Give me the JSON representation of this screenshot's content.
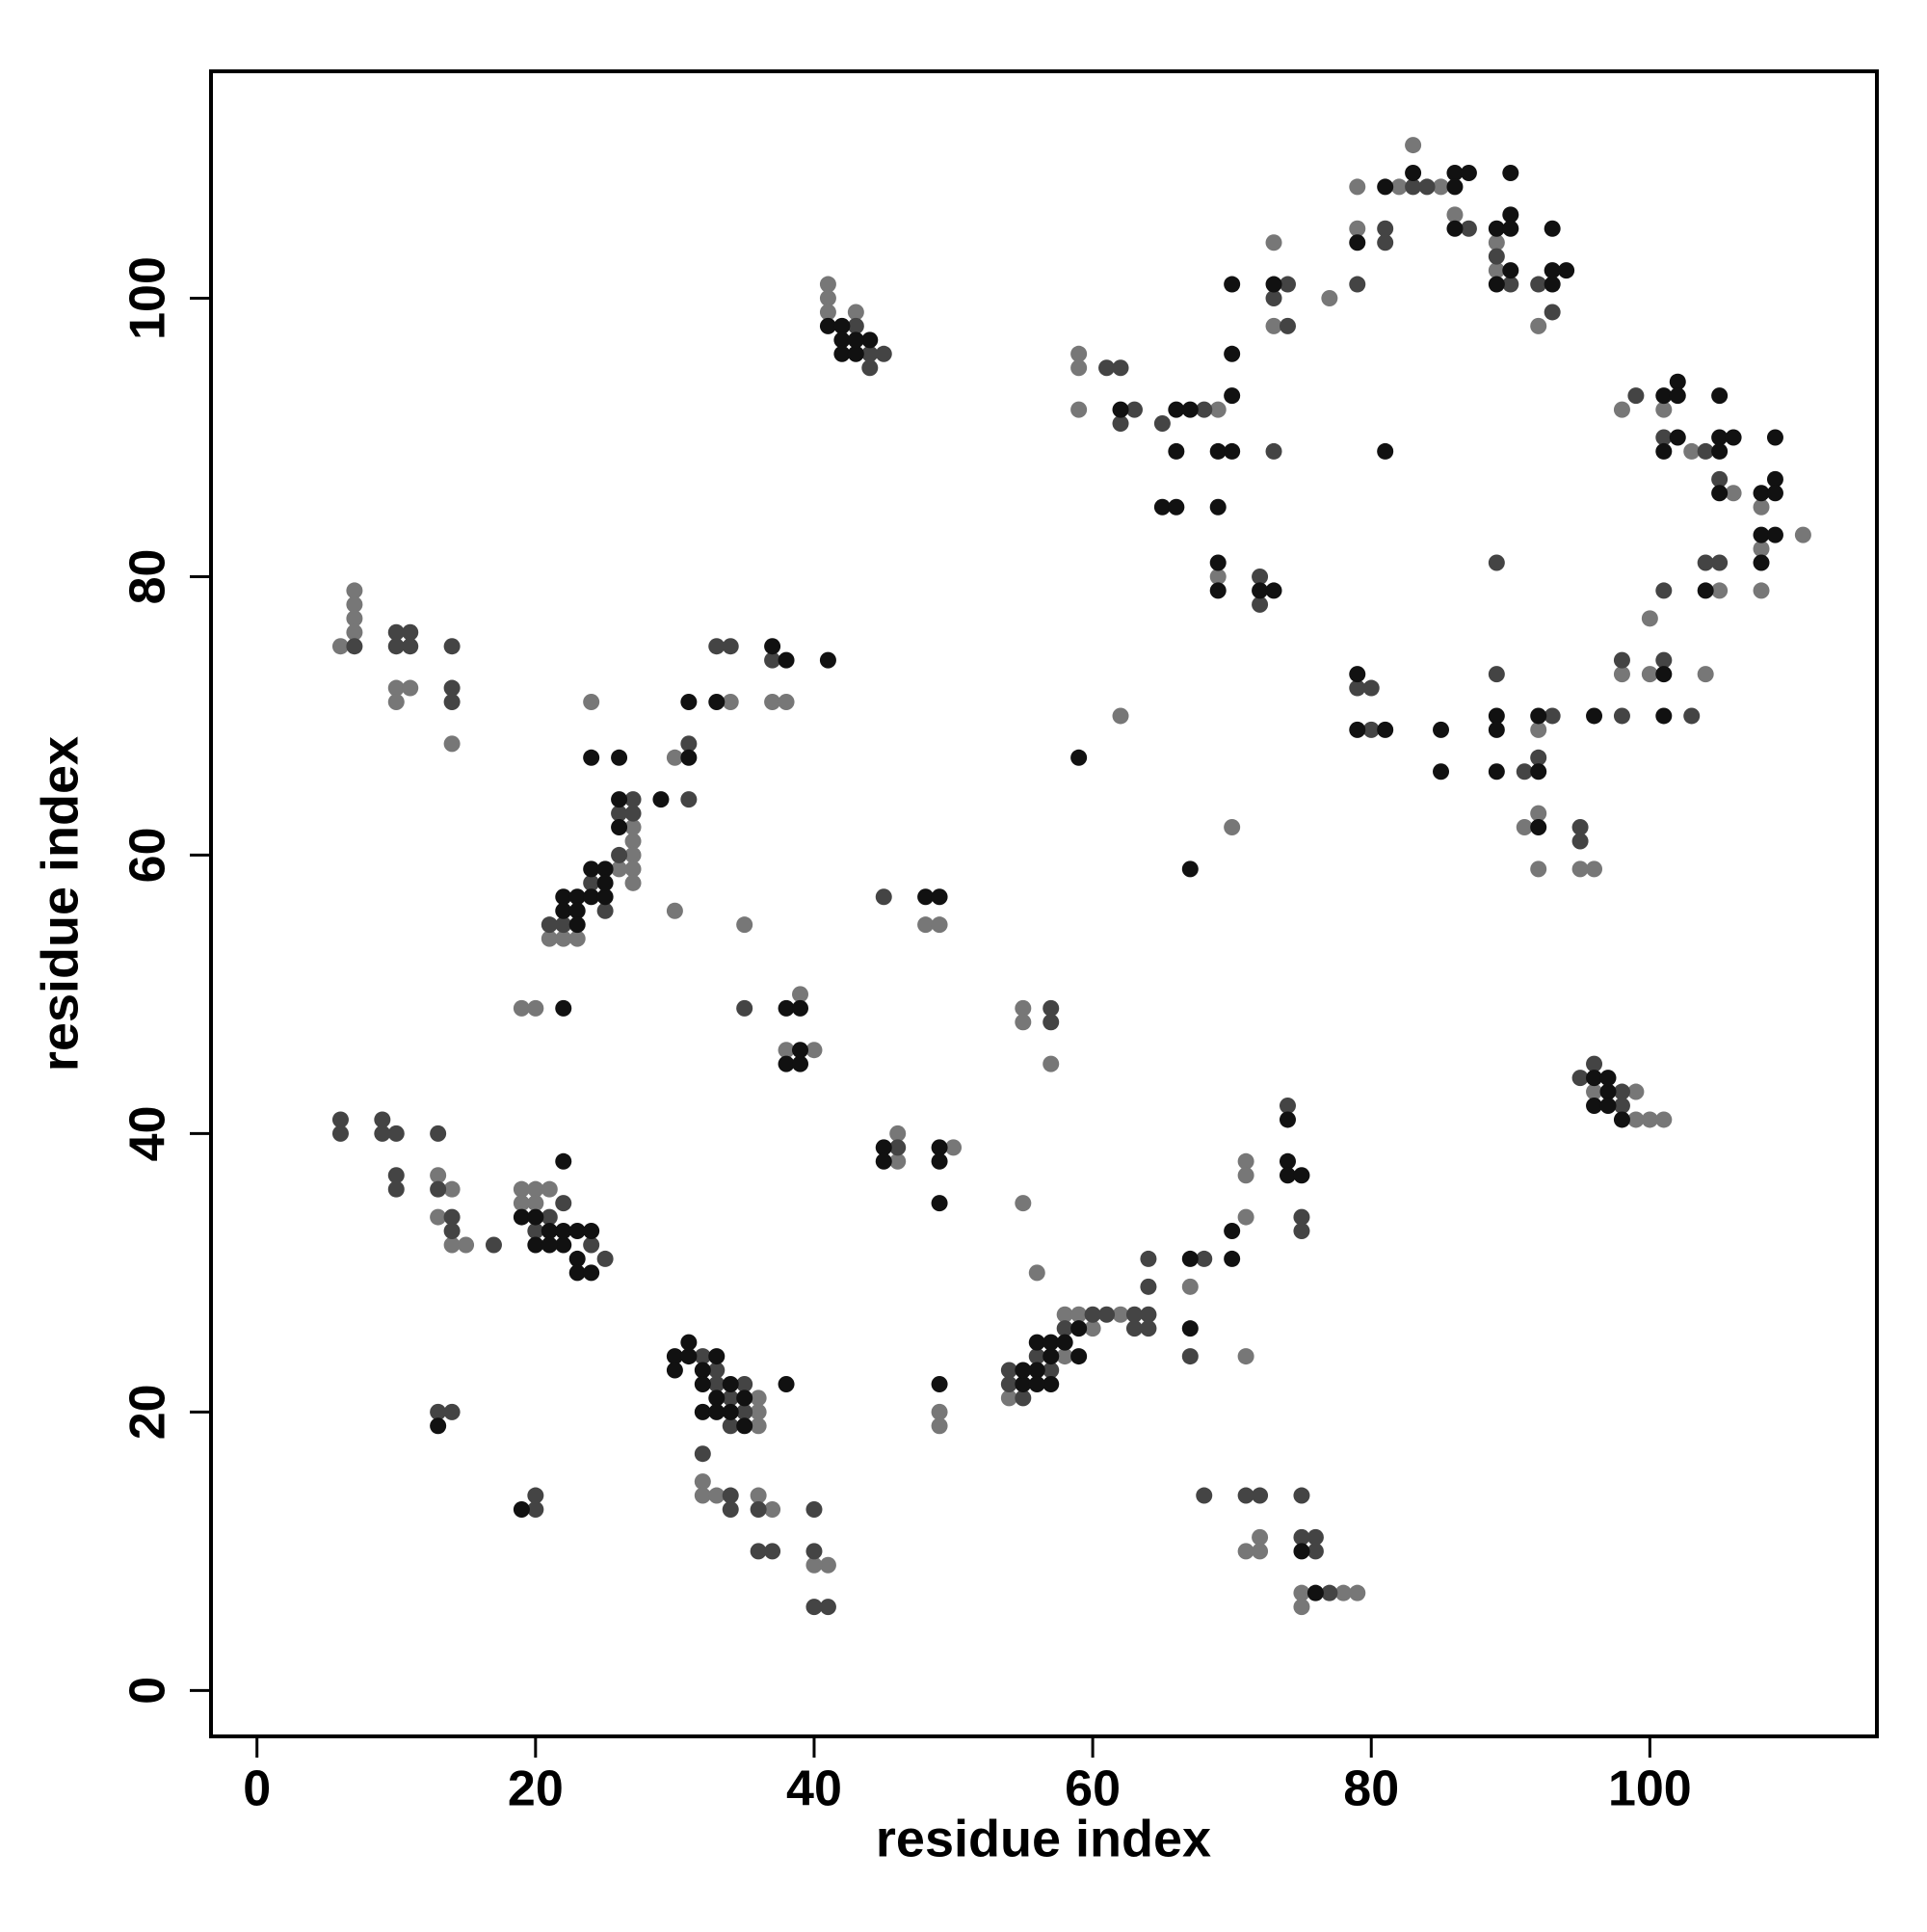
{
  "chart_data": {
    "type": "scatter",
    "xlabel": "residue index",
    "ylabel": "residue index",
    "xlim": [
      -3.3,
      116.3
    ],
    "ylim": [
      -3.3,
      116.3
    ],
    "xticks": [
      0,
      20,
      40,
      60,
      80,
      100
    ],
    "yticks": [
      0,
      20,
      40,
      60,
      80,
      100
    ],
    "series": [
      {
        "color": "#777777",
        "x": [
          41,
          41,
          41,
          43,
          6,
          7,
          7,
          7,
          7,
          10,
          10,
          11,
          14,
          21,
          22,
          23,
          26,
          27,
          27,
          27,
          27,
          27,
          24,
          30,
          34,
          37,
          38,
          30,
          35,
          19,
          20,
          39,
          38,
          40,
          48,
          49,
          13,
          14,
          13,
          14,
          15,
          19,
          20,
          21,
          19,
          20,
          32,
          32,
          33,
          36,
          36,
          36,
          36,
          37,
          41,
          40,
          46,
          46,
          50,
          49,
          49,
          54,
          58,
          59,
          62,
          60,
          56,
          55,
          58,
          67,
          71,
          71,
          71,
          71,
          71,
          72,
          72,
          75,
          75,
          78,
          79,
          55,
          55,
          57,
          96,
          99,
          99,
          100,
          101,
          59,
          59,
          59,
          69,
          69,
          73,
          73,
          77,
          79,
          79,
          82,
          83,
          85,
          86,
          89,
          89,
          92,
          92,
          91,
          92,
          92,
          95,
          96,
          98,
          98,
          100,
          100,
          101,
          103,
          104,
          105,
          106,
          108,
          108,
          108,
          111,
          62,
          70
        ],
        "values": [
          101,
          100,
          99,
          99,
          75,
          79,
          78,
          77,
          76,
          72,
          71,
          72,
          68,
          54,
          54,
          54,
          59,
          62,
          61,
          60,
          59,
          58,
          71,
          67,
          71,
          71,
          71,
          56,
          55,
          49,
          49,
          50,
          46,
          46,
          55,
          55,
          37,
          36,
          34,
          32,
          32,
          36,
          36,
          36,
          35,
          35,
          15,
          14,
          14,
          21,
          20,
          19,
          14,
          13,
          9,
          9,
          40,
          38,
          39,
          20,
          19,
          21,
          27,
          27,
          27,
          26,
          30,
          35,
          24,
          29,
          38,
          37,
          34,
          24,
          10,
          11,
          10,
          7,
          6,
          7,
          7,
          49,
          48,
          45,
          43,
          43,
          41,
          41,
          41,
          96,
          95,
          92,
          92,
          80,
          104,
          98,
          100,
          108,
          105,
          108,
          111,
          108,
          106,
          104,
          102,
          98,
          69,
          62,
          63,
          59,
          59,
          59,
          73,
          92,
          77,
          73,
          92,
          89,
          73,
          79,
          86,
          85,
          82,
          79,
          83,
          70,
          62
        ]
      },
      {
        "color": "#444444",
        "x": [
          43,
          44,
          45,
          44,
          7,
          10,
          11,
          10,
          11,
          14,
          14,
          14,
          21,
          22,
          24,
          25,
          26,
          27,
          27,
          31,
          31,
          33,
          34,
          37,
          35,
          26,
          45,
          6,
          6,
          9,
          9,
          10,
          10,
          10,
          13,
          13,
          14,
          14,
          17,
          22,
          21,
          20,
          24,
          25,
          32,
          33,
          33,
          34,
          35,
          35,
          34,
          32,
          34,
          34,
          36,
          37,
          40,
          40,
          40,
          41,
          36,
          13,
          14,
          20,
          20,
          46,
          54,
          54,
          55,
          56,
          58,
          60,
          61,
          63,
          64,
          63,
          64,
          64,
          64,
          57,
          67,
          68,
          68,
          71,
          72,
          74,
          75,
          75,
          75,
          75,
          76,
          76,
          77,
          57,
          57,
          95,
          96,
          98,
          98,
          61,
          62,
          62,
          63,
          68,
          65,
          72,
          72,
          73,
          73,
          74,
          74,
          79,
          81,
          81,
          83,
          84,
          87,
          89,
          90,
          93,
          92,
          79,
          80,
          80,
          89,
          89,
          91,
          93,
          92,
          95,
          95,
          98,
          98,
          99,
          101,
          101,
          101,
          104,
          105,
          105,
          103,
          104
        ],
        "values": [
          98,
          95,
          96,
          96,
          75,
          76,
          76,
          75,
          75,
          75,
          72,
          71,
          55,
          55,
          58,
          56,
          63,
          64,
          63,
          68,
          64,
          75,
          75,
          74,
          49,
          60,
          57,
          41,
          40,
          41,
          40,
          40,
          37,
          36,
          40,
          36,
          34,
          33,
          32,
          35,
          34,
          33,
          32,
          31,
          24,
          23,
          22,
          21,
          22,
          20,
          19,
          17,
          14,
          13,
          10,
          10,
          13,
          10,
          6,
          6,
          13,
          20,
          20,
          14,
          13,
          39,
          23,
          22,
          21,
          24,
          26,
          27,
          27,
          27,
          27,
          26,
          26,
          31,
          29,
          23,
          24,
          31,
          14,
          14,
          14,
          42,
          34,
          33,
          14,
          11,
          11,
          10,
          7,
          49,
          48,
          44,
          45,
          42,
          43,
          95,
          95,
          91,
          92,
          92,
          91,
          80,
          78,
          89,
          100,
          101,
          98,
          101,
          105,
          104,
          108,
          108,
          105,
          103,
          101,
          99,
          101,
          72,
          69,
          72,
          81,
          73,
          66,
          70,
          67,
          62,
          61,
          74,
          70,
          93,
          90,
          74,
          79,
          81,
          81,
          87,
          70,
          89
        ]
      },
      {
        "color": "#111111",
        "x": [
          41,
          42,
          42,
          42,
          43,
          44,
          43,
          22,
          23,
          22,
          23,
          24,
          25,
          23,
          24,
          25,
          26,
          26,
          25,
          24,
          26,
          29,
          31,
          31,
          33,
          37,
          38,
          41,
          22,
          38,
          39,
          38,
          39,
          39,
          48,
          49,
          19,
          20,
          21,
          22,
          22,
          23,
          23,
          23,
          24,
          24,
          20,
          22,
          21,
          30,
          31,
          31,
          30,
          32,
          33,
          32,
          33,
          34,
          34,
          35,
          35,
          32,
          38,
          33,
          13,
          19,
          45,
          45,
          49,
          49,
          49,
          49,
          55,
          56,
          56,
          57,
          57,
          57,
          58,
          59,
          59,
          56,
          55,
          67,
          67,
          70,
          70,
          74,
          74,
          74,
          75,
          75,
          76,
          96,
          97,
          97,
          98,
          96,
          97,
          62,
          66,
          66,
          67,
          65,
          66,
          69,
          70,
          69,
          69,
          69,
          70,
          70,
          70,
          72,
          73,
          73,
          79,
          79,
          79,
          81,
          81,
          81,
          83,
          86,
          86,
          86,
          87,
          89,
          90,
          90,
          90,
          89,
          90,
          93,
          93,
          93,
          94,
          89,
          89,
          89,
          92,
          92,
          92,
          85,
          85,
          101,
          102,
          102,
          102,
          101,
          105,
          105,
          105,
          106,
          105,
          108,
          109,
          109,
          108,
          109,
          109,
          108,
          104,
          101,
          101,
          96,
          59,
          67
        ],
        "values": [
          98,
          98,
          97,
          96,
          96,
          97,
          97,
          57,
          57,
          56,
          56,
          57,
          57,
          55,
          59,
          59,
          64,
          62,
          58,
          67,
          67,
          64,
          71,
          67,
          71,
          75,
          74,
          74,
          49,
          49,
          49,
          45,
          45,
          46,
          57,
          57,
          34,
          34,
          33,
          32,
          33,
          33,
          31,
          30,
          30,
          33,
          32,
          38,
          32,
          24,
          24,
          25,
          23,
          23,
          24,
          22,
          21,
          22,
          20,
          21,
          19,
          20,
          22,
          20,
          19,
          13,
          39,
          38,
          39,
          38,
          35,
          22,
          22,
          23,
          25,
          24,
          25,
          22,
          25,
          24,
          26,
          22,
          23,
          26,
          31,
          31,
          33,
          41,
          38,
          37,
          37,
          10,
          7,
          42,
          43,
          42,
          41,
          44,
          44,
          92,
          92,
          89,
          92,
          85,
          85,
          89,
          89,
          85,
          81,
          79,
          101,
          96,
          93,
          79,
          101,
          79,
          104,
          73,
          69,
          108,
          89,
          69,
          109,
          109,
          108,
          105,
          109,
          105,
          106,
          105,
          102,
          101,
          109,
          105,
          102,
          101,
          102,
          70,
          69,
          66,
          70,
          66,
          62,
          69,
          66,
          93,
          94,
          93,
          90,
          89,
          93,
          90,
          89,
          90,
          86,
          86,
          87,
          86,
          83,
          83,
          90,
          81,
          79,
          73,
          70,
          70,
          67,
          59
        ]
      }
    ]
  }
}
